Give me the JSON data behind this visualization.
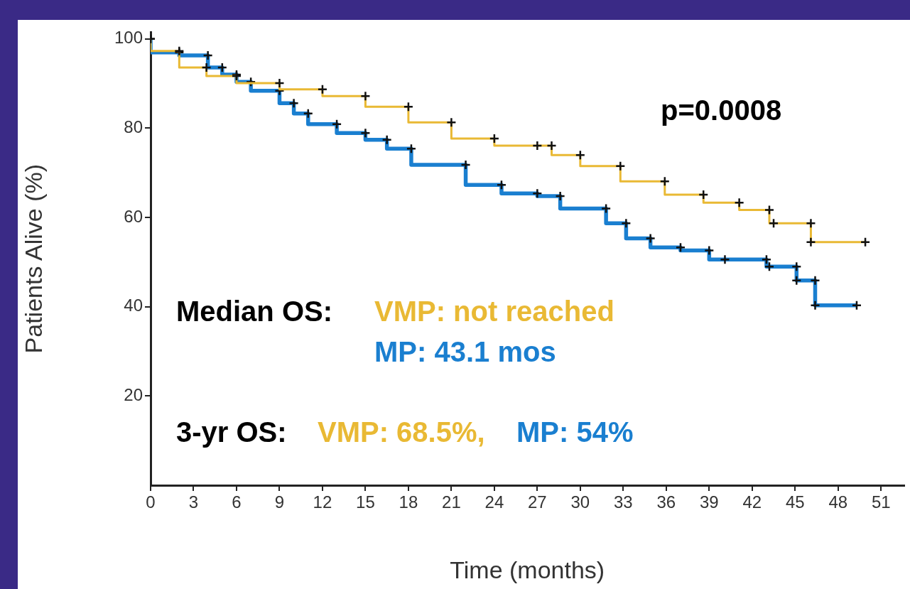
{
  "chart_data": {
    "type": "step",
    "xlabel": "Time (months)",
    "ylabel": "Patients Alive (%)",
    "xlim": [
      0,
      52.6
    ],
    "ylim": [
      0,
      101.5
    ],
    "xticks": [
      0,
      3,
      6,
      9,
      12,
      15,
      18,
      21,
      24,
      27,
      30,
      33,
      36,
      39,
      42,
      45,
      48,
      51
    ],
    "yticks": [
      20,
      40,
      60,
      80,
      100
    ],
    "grid": false,
    "legend": false,
    "marker": "cross",
    "annotations": [
      "p=0.0008",
      "Median OS:",
      "VMP: not reached",
      "MP: 43.1 mos",
      "3-yr OS:",
      "VMP: 68.5%,",
      "MP: 54%"
    ],
    "series": [
      {
        "color": "#e9b934",
        "x": [
          0,
          2,
          3.9,
          6,
          9,
          12,
          15,
          18,
          21,
          24,
          27,
          28,
          30,
          32.8,
          35.9,
          38.6,
          41.1,
          43.2,
          43.5,
          46.1,
          46.1,
          49.9
        ],
        "values": [
          100,
          97.3,
          93.6,
          91.7,
          90.1,
          88.7,
          87.2,
          84.8,
          81.3,
          77.7,
          76.1,
          76.1,
          74,
          71.5,
          68.1,
          65.1,
          63.3,
          61.7,
          58.7,
          58.7,
          54.5,
          54.5
        ]
      },
      {
        "color": "#1a7fd0",
        "x": [
          0,
          2,
          4,
          5,
          6,
          7,
          9,
          10,
          11,
          13,
          15,
          16.5,
          18.2,
          22,
          24.5,
          27,
          28.6,
          31.8,
          33.2,
          34.9,
          37,
          39,
          40.1,
          43,
          43.2,
          45.1,
          45.1,
          46.4,
          46.4,
          49.3
        ],
        "values": [
          100,
          97,
          96.3,
          93.6,
          92,
          90.4,
          88.4,
          85.6,
          83.3,
          80.9,
          78.9,
          77.4,
          75.4,
          71.8,
          67.3,
          65.4,
          64.8,
          62,
          58.7,
          55.3,
          53.3,
          52.6,
          50.6,
          50.6,
          49,
          49,
          45.9,
          45.9,
          40.3,
          40.3
        ]
      }
    ]
  }
}
